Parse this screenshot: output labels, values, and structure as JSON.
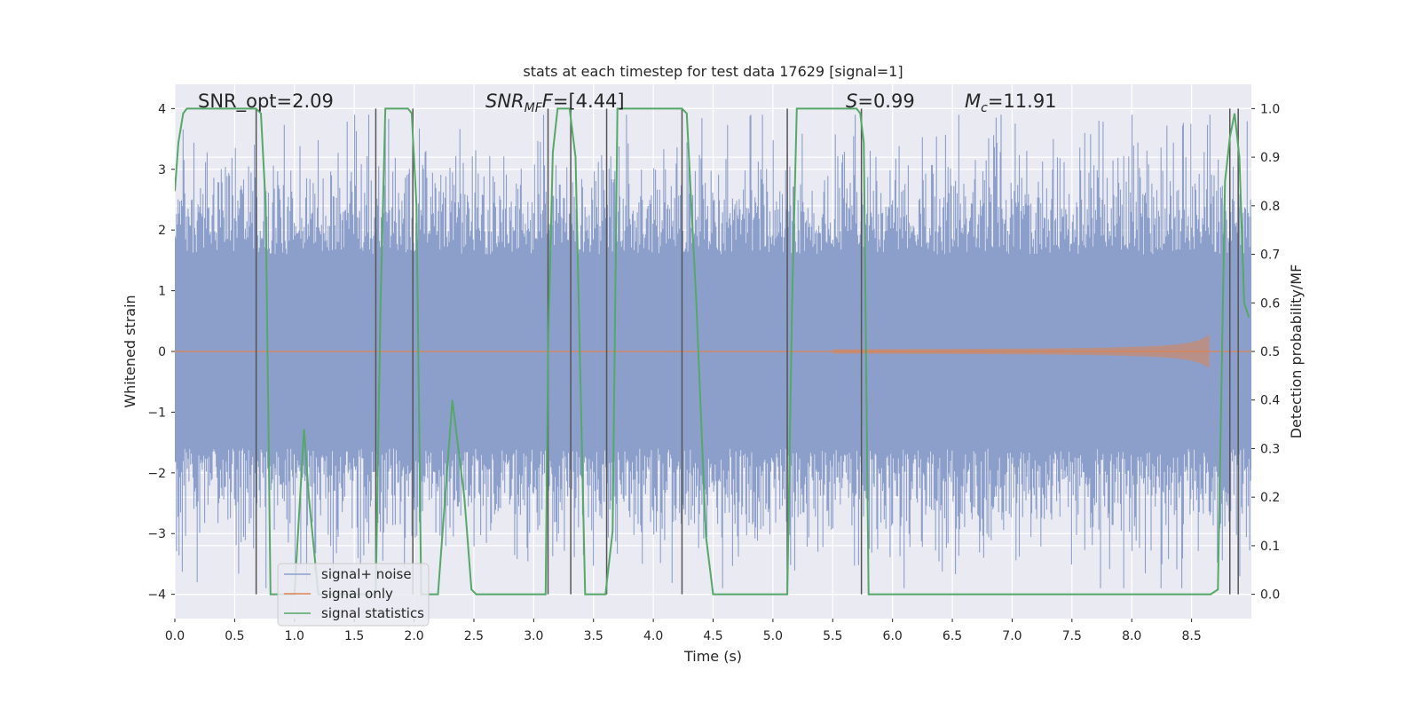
{
  "chart_data": {
    "type": "line",
    "title": "stats at each timestep for test data 17629 [signal=1]",
    "xlabel": "Time (s)",
    "ylabel": "Whitened strain",
    "y2label": "Detection probability/MF",
    "xlim": [
      0,
      9
    ],
    "ylim": [
      -4.4,
      4.4
    ],
    "y2lim": [
      -0.05,
      1.05
    ],
    "xticks": [
      0.0,
      0.5,
      1.0,
      1.5,
      2.0,
      2.5,
      3.0,
      3.5,
      4.0,
      4.5,
      5.0,
      5.5,
      6.0,
      6.5,
      7.0,
      7.5,
      8.0,
      8.5
    ],
    "xtick_labels": [
      "0.0",
      "0.5",
      "1.0",
      "1.5",
      "2.0",
      "2.5",
      "3.0",
      "3.5",
      "4.0",
      "4.5",
      "5.0",
      "5.5",
      "6.0",
      "6.5",
      "7.0",
      "7.5",
      "8.0",
      "8.5"
    ],
    "yticks": [
      -4,
      -3,
      -2,
      -1,
      0,
      1,
      2,
      3,
      4
    ],
    "ytick_labels": [
      "−4",
      "−3",
      "−2",
      "−1",
      "0",
      "1",
      "2",
      "3",
      "4"
    ],
    "y2ticks": [
      0.0,
      0.1,
      0.2,
      0.3,
      0.4,
      0.5,
      0.6,
      0.7,
      0.8,
      0.9,
      1.0
    ],
    "y2tick_labels": [
      "0.0",
      "0.1",
      "0.2",
      "0.3",
      "0.4",
      "0.5",
      "0.6",
      "0.7",
      "0.8",
      "0.9",
      "1.0"
    ],
    "grid": true,
    "annotations": {
      "snr_opt": "SNR_opt=2.09",
      "snr_mf_main": "SNR",
      "snr_mf_sub": "MF",
      "snr_mf_value": "=[4.44]",
      "s_main": "S",
      "s_value": "=0.99",
      "mc_main": "M",
      "mc_sub": "c",
      "mc_value": "=11.91"
    },
    "legend": {
      "position": "lower-left",
      "entries": [
        "signal+ noise",
        "signal only",
        "signal statistics"
      ]
    },
    "colors": {
      "noise": "#8c9fcb",
      "signal": "#dd8452",
      "stats": "#55a868",
      "vlines": "#555555",
      "background": "#eaeaf2"
    },
    "series": [
      {
        "name": "signal+ noise",
        "description_type": "dense noise band",
        "band_core": 1.6,
        "peak_max": 3.9
      },
      {
        "name": "signal only",
        "chirp_start": 5.5,
        "chirp_end": 8.65,
        "chirp_peak": 0.35
      },
      {
        "name": "signal statistics",
        "axis": "right",
        "x": [
          0.0,
          0.03,
          0.07,
          0.1,
          0.2,
          0.3,
          0.4,
          0.5,
          0.6,
          0.68,
          0.72,
          0.76,
          0.8,
          0.85,
          1.0,
          1.08,
          1.12,
          1.2,
          1.4,
          1.6,
          1.68,
          1.72,
          1.76,
          1.8,
          1.9,
          1.95,
          1.98,
          2.02,
          2.06,
          2.1,
          2.14,
          2.2,
          2.32,
          2.42,
          2.48,
          2.52,
          2.6,
          2.8,
          2.9,
          3.0,
          3.08,
          3.1,
          3.12,
          3.16,
          3.2,
          3.3,
          3.35,
          3.43,
          3.5,
          3.54,
          3.6,
          3.66,
          3.7,
          4.0,
          4.24,
          4.28,
          4.36,
          4.44,
          4.5,
          4.8,
          5.02,
          5.12,
          5.16,
          5.2,
          5.6,
          5.7,
          5.73,
          5.76,
          5.8,
          6.2,
          6.6,
          6.8,
          7.0,
          7.3,
          7.6,
          8.0,
          8.4,
          8.66,
          8.72,
          8.78,
          8.82,
          8.86,
          8.9,
          8.94,
          8.98
        ],
        "values": [
          0.83,
          0.93,
          0.99,
          1.0,
          1.0,
          1.0,
          1.0,
          1.0,
          1.0,
          1.0,
          0.99,
          0.8,
          0.0,
          0.0,
          0.0,
          0.34,
          0.2,
          0.0,
          0.0,
          0.0,
          0.0,
          0.6,
          1.0,
          1.0,
          1.0,
          1.0,
          0.99,
          0.8,
          0.0,
          0.0,
          0.0,
          0.0,
          0.4,
          0.2,
          0.01,
          0.0,
          0.0,
          0.0,
          0.0,
          0.0,
          0.0,
          0.0,
          0.5,
          0.91,
          1.0,
          1.0,
          0.9,
          0.0,
          0.0,
          0.0,
          0.0,
          0.13,
          1.0,
          1.0,
          1.0,
          0.99,
          0.6,
          0.12,
          0.0,
          0.0,
          0.0,
          0.0,
          0.6,
          1.0,
          1.0,
          1.0,
          0.99,
          0.93,
          0.0,
          0.0,
          0.0,
          0.0,
          0.0,
          0.0,
          0.0,
          0.0,
          0.0,
          0.0,
          0.01,
          0.85,
          0.94,
          0.99,
          0.9,
          0.6,
          0.57
        ]
      }
    ],
    "vertical_lines_x": [
      0.68,
      1.68,
      1.99,
      3.12,
      3.31,
      3.61,
      4.24,
      5.12,
      5.74,
      8.82,
      8.89
    ]
  }
}
